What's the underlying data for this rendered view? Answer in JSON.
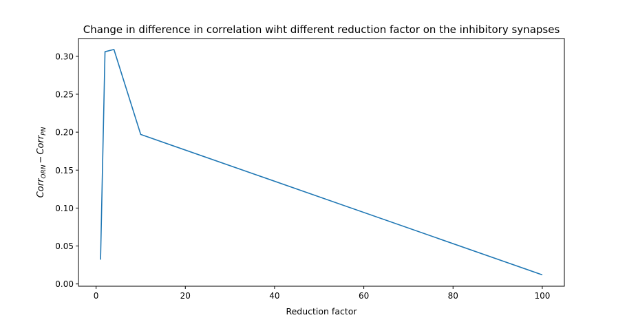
{
  "chart_data": {
    "type": "line",
    "title": "Change in difference in correlation wiht different reduction factor on the inhibitory synapses",
    "xlabel": "Reduction factor",
    "ylabel": {
      "base1": "Corr",
      "sub1": "ORN",
      "minus": "−",
      "base2": "Corr",
      "sub2": "PN"
    },
    "xlim": [
      -3.95,
      104.95
    ],
    "ylim": [
      -0.003,
      0.3234
    ],
    "xticks": [
      0,
      20,
      40,
      60,
      80,
      100
    ],
    "xtick_labels": [
      "0",
      "20",
      "40",
      "60",
      "80",
      "100"
    ],
    "yticks": [
      0.0,
      0.05,
      0.1,
      0.15,
      0.2,
      0.25,
      0.3
    ],
    "ytick_labels": [
      "0.00",
      "0.05",
      "0.10",
      "0.15",
      "0.20",
      "0.25",
      "0.30"
    ],
    "grid": false,
    "series": [
      {
        "color": "#1f77b4",
        "x": [
          1,
          2,
          4,
          10,
          100
        ],
        "y": [
          0.032,
          0.306,
          0.309,
          0.197,
          0.012
        ]
      }
    ]
  }
}
